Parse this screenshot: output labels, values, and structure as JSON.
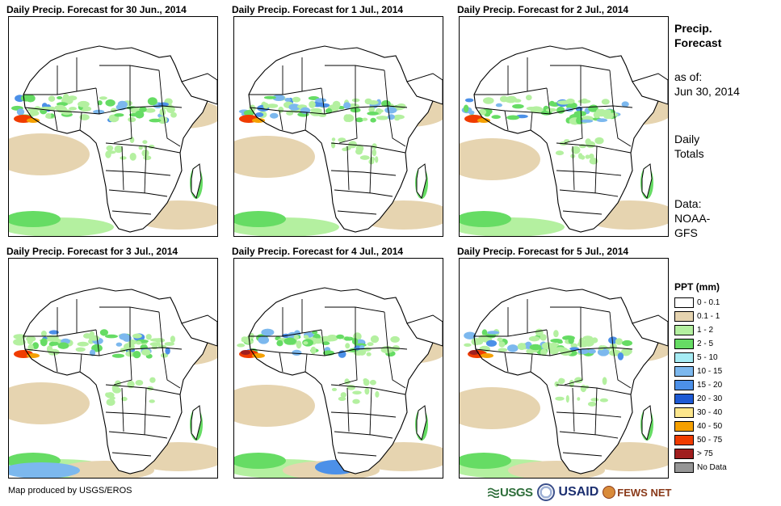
{
  "panels": [
    {
      "title": "Daily Precip. Forecast for 30 Jun., 2014",
      "variant": 0
    },
    {
      "title": "Daily Precip. Forecast for 1 Jul., 2014",
      "variant": 1
    },
    {
      "title": "Daily Precip. Forecast for 2 Jul., 2014",
      "variant": 2
    },
    {
      "title": "Daily Precip. Forecast for 3 Jul., 2014",
      "variant": 3
    },
    {
      "title": "Daily Precip. Forecast for 4 Jul., 2014",
      "variant": 4
    },
    {
      "title": "Daily Precip. Forecast for 5 Jul., 2014",
      "variant": 5
    }
  ],
  "sidebar": {
    "title_line1": "Precip.",
    "title_line2": "Forecast",
    "asof_label": "as of:",
    "asof_date": "Jun 30, 2014",
    "totals_line1": "Daily",
    "totals_line2": "Totals",
    "data_line1": "Data:",
    "data_line2": "NOAA-",
    "data_line3": "GFS"
  },
  "legend": {
    "title": "PPT (mm)",
    "items": [
      {
        "label": "0 - 0.1",
        "color": "#ffffff"
      },
      {
        "label": "0.1 - 1",
        "color": "#e6d4b0"
      },
      {
        "label": "1 - 2",
        "color": "#b4f0a0"
      },
      {
        "label": "2 - 5",
        "color": "#66dc64"
      },
      {
        "label": "5 - 10",
        "color": "#a6ecf4"
      },
      {
        "label": "10 - 15",
        "color": "#7cb8ee"
      },
      {
        "label": "15 - 20",
        "color": "#4c90e8"
      },
      {
        "label": "20 - 30",
        "color": "#1e5ad4"
      },
      {
        "label": "30 - 40",
        "color": "#fce68c"
      },
      {
        "label": "40 - 50",
        "color": "#f5a000"
      },
      {
        "label": "50 - 75",
        "color": "#f03c00"
      },
      {
        "label": "> 75",
        "color": "#a01e1e"
      },
      {
        "label": "No Data",
        "color": "#969696"
      }
    ]
  },
  "footer": {
    "credit": "Map produced by USGS/EROS",
    "logo_usgs": "USGS",
    "logo_usaid": "USAID",
    "logo_fews": "FEWS NET"
  }
}
